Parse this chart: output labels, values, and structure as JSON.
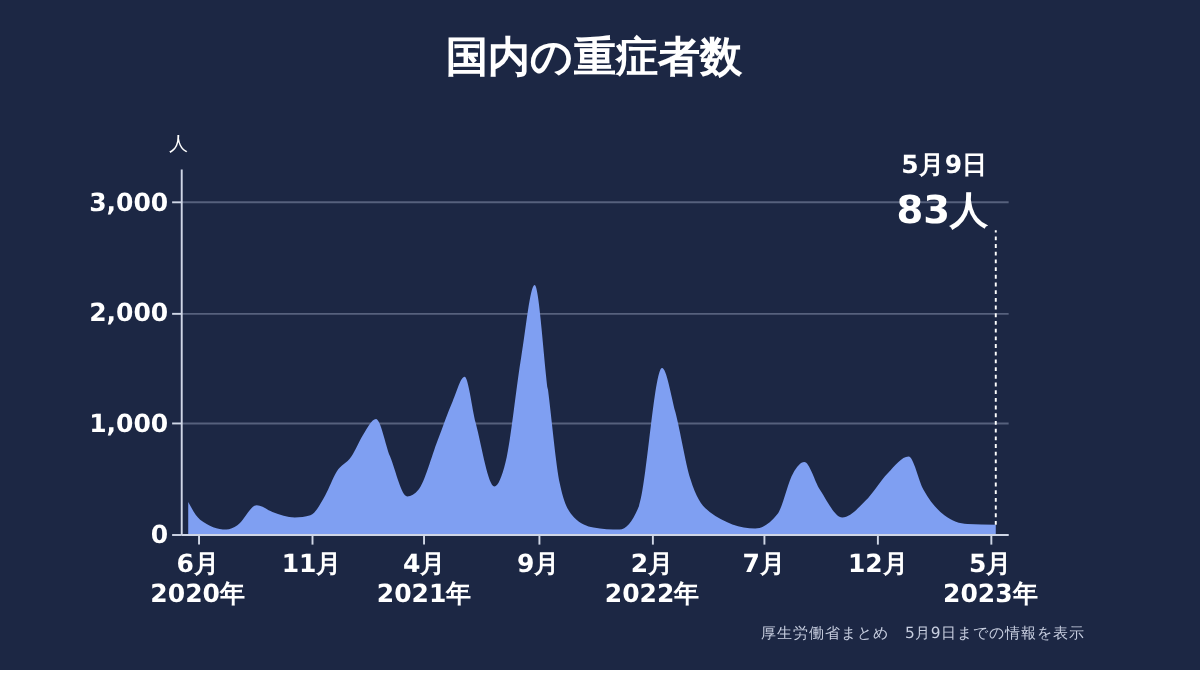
{
  "chart_data": {
    "type": "area",
    "title": "国内の重症者数",
    "ylabel": "人",
    "x": [
      "2020-05-20",
      "2020-06-05",
      "2020-07-10",
      "2020-07-25",
      "2020-08-20",
      "2020-09-10",
      "2020-10-10",
      "2020-10-31",
      "2020-11-20",
      "2020-12-05",
      "2020-12-25",
      "2021-01-10",
      "2021-01-27",
      "2021-02-15",
      "2021-03-10",
      "2021-03-25",
      "2021-04-20",
      "2021-05-10",
      "2021-05-26",
      "2021-06-10",
      "2021-07-05",
      "2021-07-20",
      "2021-08-10",
      "2021-08-28",
      "2021-09-15",
      "2021-10-01",
      "2021-10-20",
      "2021-11-15",
      "2021-12-20",
      "2022-01-15",
      "2022-02-15",
      "2022-03-05",
      "2022-03-25",
      "2022-04-20",
      "2022-06-20",
      "2022-07-20",
      "2022-08-10",
      "2022-08-25",
      "2022-09-15",
      "2022-10-15",
      "2022-11-15",
      "2022-12-15",
      "2023-01-12",
      "2023-02-01",
      "2023-03-01",
      "2023-04-01",
      "2023-05-09"
    ],
    "series": [
      {
        "color": "#7f9ff2",
        "values": [
          290,
          130,
          40,
          80,
          260,
          200,
          150,
          170,
          350,
          560,
          700,
          900,
          1040,
          700,
          340,
          400,
          850,
          1200,
          1420,
          1000,
          430,
          650,
          1600,
          2250,
          1300,
          450,
          150,
          60,
          40,
          250,
          1500,
          1100,
          500,
          200,
          50,
          180,
          550,
          650,
          400,
          150,
          300,
          550,
          700,
          400,
          170,
          90,
          83
        ]
      }
    ],
    "xlim": [
      "2020-05-10",
      "2023-05-25"
    ],
    "xticks": [
      {
        "value": "2020-06-01",
        "label": "6月\n2020年"
      },
      {
        "value": "2020-11-01",
        "label": "11月"
      },
      {
        "value": "2021-04-01",
        "label": "4月\n2021年"
      },
      {
        "value": "2021-09-01",
        "label": "9月"
      },
      {
        "value": "2022-02-01",
        "label": "2月\n2022年"
      },
      {
        "value": "2022-07-01",
        "label": "7月"
      },
      {
        "value": "2022-12-01",
        "label": "12月"
      },
      {
        "value": "2023-05-01",
        "label": "5月\n2023年"
      }
    ],
    "ylim": [
      0,
      3300
    ],
    "yticks": [
      0,
      {
        "value": 1000,
        "label": "1,000"
      },
      {
        "value": 2000,
        "label": "2,000"
      },
      {
        "value": 3000,
        "label": "3,000"
      }
    ],
    "grid": "y",
    "annotations": [
      "5月9日",
      {
        "text": "83人",
        "x": "2023-05-09",
        "y": 83
      },
      "厚生労働省まとめ　5月9日までの情報を表示"
    ]
  }
}
